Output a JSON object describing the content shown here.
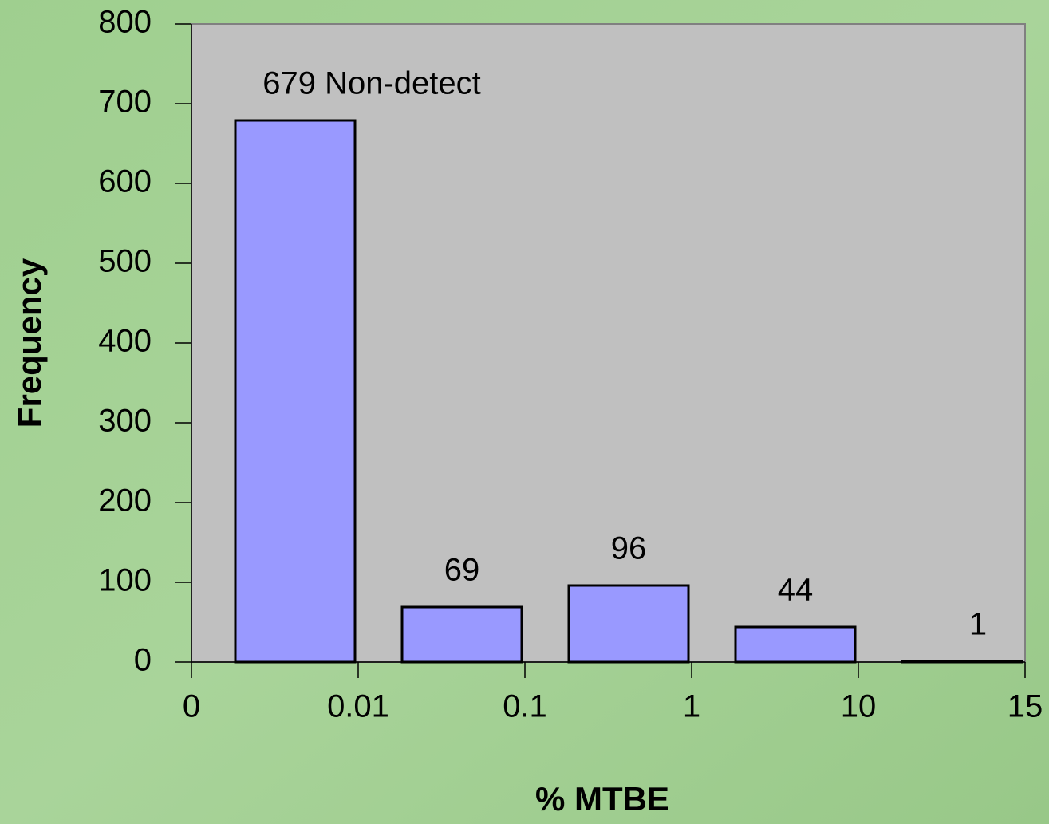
{
  "chart_data": {
    "type": "histogram",
    "x_label": "% MTBE",
    "y_label": "Frequency",
    "bins": [
      0,
      0.01,
      0.1,
      1,
      10,
      15
    ],
    "values": [
      679,
      69,
      96,
      44,
      1
    ],
    "value_labels": [
      "679 Non-detect",
      "69",
      "96",
      "44",
      "1"
    ],
    "color": "#9999ff",
    "ylim": [
      0,
      800
    ],
    "yticks": [
      0,
      100,
      200,
      300,
      400,
      500,
      600,
      700,
      800
    ],
    "grid": false
  }
}
